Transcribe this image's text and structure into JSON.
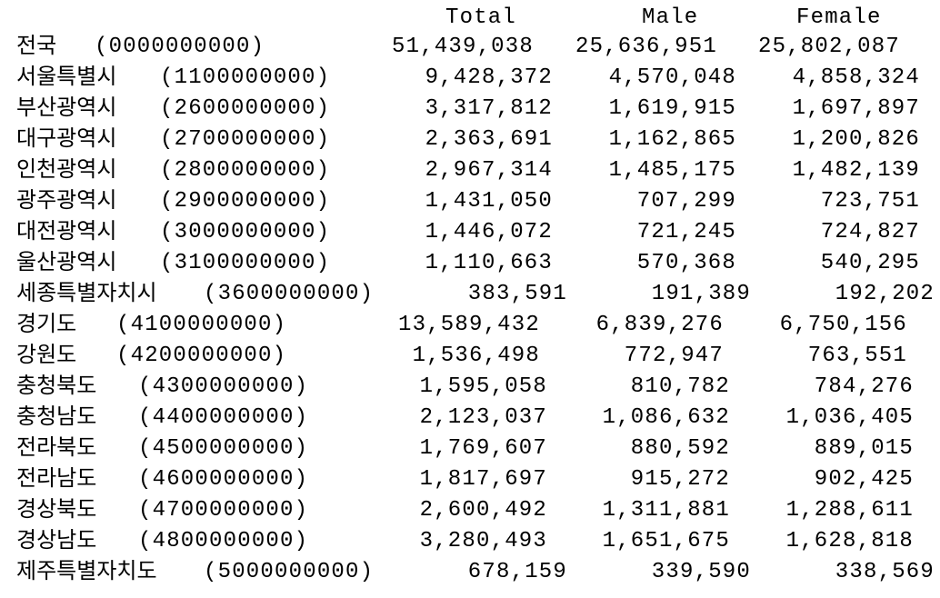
{
  "headers": {
    "total": "Total",
    "male": "Male",
    "female": "Female"
  },
  "rows": [
    {
      "name": "전국",
      "code": "(0000000000)",
      "total": "51,439,038",
      "male": "25,636,951",
      "female": "25,802,087"
    },
    {
      "name": "서울특별시",
      "code": "(1100000000)",
      "total": "9,428,372",
      "male": "4,570,048",
      "female": "4,858,324"
    },
    {
      "name": "부산광역시",
      "code": "(2600000000)",
      "total": "3,317,812",
      "male": "1,619,915",
      "female": "1,697,897"
    },
    {
      "name": "대구광역시",
      "code": "(2700000000)",
      "total": "2,363,691",
      "male": "1,162,865",
      "female": "1,200,826"
    },
    {
      "name": "인천광역시",
      "code": "(2800000000)",
      "total": "2,967,314",
      "male": "1,485,175",
      "female": "1,482,139"
    },
    {
      "name": "광주광역시",
      "code": "(2900000000)",
      "total": "1,431,050",
      "male": "707,299",
      "female": "723,751"
    },
    {
      "name": "대전광역시",
      "code": "(3000000000)",
      "total": "1,446,072",
      "male": "721,245",
      "female": "724,827"
    },
    {
      "name": "울산광역시",
      "code": "(3100000000)",
      "total": "1,110,663",
      "male": "570,368",
      "female": "540,295"
    },
    {
      "name": "세종특별자치시",
      "code": "(3600000000)",
      "total": "383,591",
      "male": "191,389",
      "female": "192,202"
    },
    {
      "name": "경기도",
      "code": "(4100000000)",
      "total": "13,589,432",
      "male": "6,839,276",
      "female": "6,750,156"
    },
    {
      "name": "강원도",
      "code": "(4200000000)",
      "total": "1,536,498",
      "male": "772,947",
      "female": "763,551"
    },
    {
      "name": "충청북도",
      "code": "(4300000000)",
      "total": "1,595,058",
      "male": "810,782",
      "female": "784,276"
    },
    {
      "name": "충청남도",
      "code": "(4400000000)",
      "total": "2,123,037",
      "male": "1,086,632",
      "female": "1,036,405"
    },
    {
      "name": "전라북도",
      "code": "(4500000000)",
      "total": "1,769,607",
      "male": "880,592",
      "female": "889,015"
    },
    {
      "name": "전라남도",
      "code": "(4600000000)",
      "total": "1,817,697",
      "male": "915,272",
      "female": "902,425"
    },
    {
      "name": "경상북도",
      "code": "(4700000000)",
      "total": "2,600,492",
      "male": "1,311,881",
      "female": "1,288,611"
    },
    {
      "name": "경상남도",
      "code": "(4800000000)",
      "total": "3,280,493",
      "male": "1,651,675",
      "female": "1,628,818"
    },
    {
      "name": "제주특별자치도",
      "code": "(5000000000)",
      "total": "678,159",
      "male": "339,590",
      "female": "338,569"
    }
  ]
}
